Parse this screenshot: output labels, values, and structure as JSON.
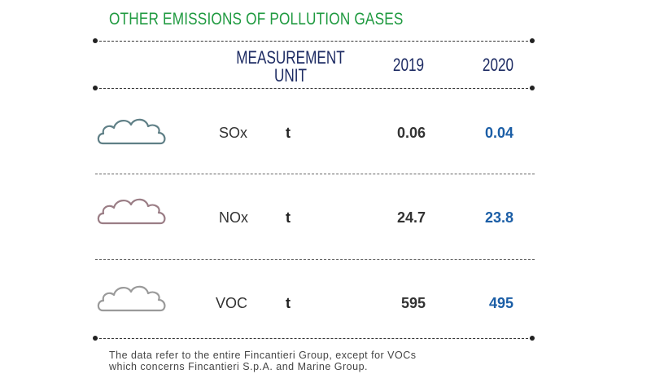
{
  "title": "OTHER EMISSIONS OF POLLUTION GASES",
  "header": {
    "unit_line1": "MEASUREMENT",
    "unit_line2": "UNIT",
    "year1": "2019",
    "year2": "2020"
  },
  "rows": [
    {
      "gas": "SOx",
      "unit": "t",
      "v2019": "0.06",
      "v2020": "0.04",
      "icon": "cloud-icon",
      "icon_color": "#5f7f86"
    },
    {
      "gas": "NOx",
      "unit": "t",
      "v2019": "24.7",
      "v2020": "23.8",
      "icon": "cloud-icon",
      "icon_color": "#9a7d85"
    },
    {
      "gas": "VOC",
      "unit": "t",
      "v2019": "595",
      "v2020": "495",
      "icon": "cloud-icon",
      "icon_color": "#9a9a9a"
    }
  ],
  "footnote": {
    "line1": "The data refer to the entire Fincantieri Group, except for VOCs",
    "line2": "which concerns Fincantieri S.p.A. and Marine Group."
  },
  "colors": {
    "title": "#1f9a40",
    "header": "#1d2b63",
    "value_2020": "#1b5ea6"
  }
}
